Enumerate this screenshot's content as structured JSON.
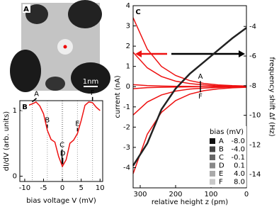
{
  "chart_data": [
    {
      "type": "image",
      "panel_label": "A",
      "scale_label": "1nm"
    },
    {
      "type": "line",
      "panel_label": "B",
      "x_label": "bias voltage V (mV)",
      "y_label": "dI/dV (arb. units)",
      "x": [
        -10,
        -9,
        -8,
        -7,
        -6,
        -5,
        -4,
        -3,
        -2,
        -1,
        0,
        1,
        2,
        3,
        4,
        5,
        6,
        7,
        8,
        9,
        10
      ],
      "series": [
        {
          "color": "#ee1111",
          "values": [
            1.05,
            1.08,
            1.1,
            1.13,
            1.07,
            0.95,
            0.7,
            0.56,
            0.52,
            0.3,
            0.15,
            0.25,
            0.5,
            0.55,
            0.65,
            0.85,
            1.08,
            1.13,
            1.12,
            1.05,
            1.0
          ]
        }
      ],
      "xlim": [
        -11.3,
        10.7
      ],
      "xticks": [
        -10,
        -5,
        0,
        5,
        10
      ],
      "ylim": [
        -0.08,
        1.15
      ],
      "yticks": [
        0,
        1
      ],
      "markers": {
        "labels": [
          "A",
          "B",
          "C",
          "D",
          "E",
          "F"
        ],
        "x": [
          -8,
          -4,
          -0.1,
          0.1,
          4,
          8
        ]
      }
    },
    {
      "type": "line",
      "panel_label": "C",
      "x_label": "relative height z (pm)",
      "y_label": "current (nA)",
      "y2_label": "frequency shift Δf (Hz)",
      "x": [
        320,
        280,
        240,
        200,
        160,
        120,
        80,
        40,
        0
      ],
      "series": [
        {
          "color": "#ee1111",
          "values": [
            3.4,
            1.85,
            1.0,
            0.55,
            0.3,
            0.16,
            0.09,
            0.05,
            0.03
          ]
        },
        {
          "color": "#ee1111",
          "values": [
            1.7,
            0.93,
            0.5,
            0.27,
            0.15,
            0.08,
            0.04,
            0.02,
            0.01
          ]
        },
        {
          "color": "#ee1111",
          "values": [
            0.1,
            0.05,
            0.03,
            0.02,
            0.01,
            0.0,
            0.0,
            0.0,
            0.0
          ]
        },
        {
          "color": "#ee1111",
          "values": [
            -0.1,
            -0.05,
            -0.03,
            -0.02,
            -0.01,
            0.0,
            0.0,
            0.0,
            0.0
          ]
        },
        {
          "color": "#ee1111",
          "values": [
            -1.4,
            -0.76,
            -0.41,
            -0.22,
            -0.12,
            -0.07,
            -0.04,
            -0.02,
            -0.01
          ]
        },
        {
          "color": "#ee1111",
          "values": [
            -4.3,
            -2.35,
            -1.27,
            -0.69,
            -0.37,
            -0.2,
            -0.11,
            -0.06,
            -0.03
          ]
        },
        {
          "color": "#222222",
          "axis": "y2",
          "values": [
            -13.4,
            -11.9,
            -9.6,
            -8.2,
            -7.2,
            -6.4,
            -5.6,
            -4.8,
            -4.1
          ]
        }
      ],
      "xlim": [
        320,
        0
      ],
      "xticks": [
        300,
        200,
        100,
        0
      ],
      "ylim": [
        -5,
        4
      ],
      "yticks": [
        -4,
        -3,
        -2,
        -1,
        0,
        1,
        2,
        3,
        4
      ],
      "y2lim": [
        -14.9,
        -2.6
      ],
      "y2ticks": [
        -4,
        -6,
        -8,
        -10,
        -12,
        -14
      ],
      "annotations": [
        "A",
        "F"
      ],
      "legend": {
        "title": "bias (mV)",
        "names": [
          "A",
          "B",
          "C",
          "D",
          "E",
          "F"
        ],
        "values": [
          -8.0,
          -4.0,
          -0.1,
          0.1,
          4.0,
          8.0
        ],
        "value_labels": [
          "-8.0",
          "-4.0",
          "-0.1",
          "0.1",
          "4.0",
          "8.0"
        ],
        "colors": [
          "#111111",
          "#444444",
          "#666666",
          "#888888",
          "#aaaaaa",
          "#c8c8c8"
        ]
      }
    }
  ]
}
